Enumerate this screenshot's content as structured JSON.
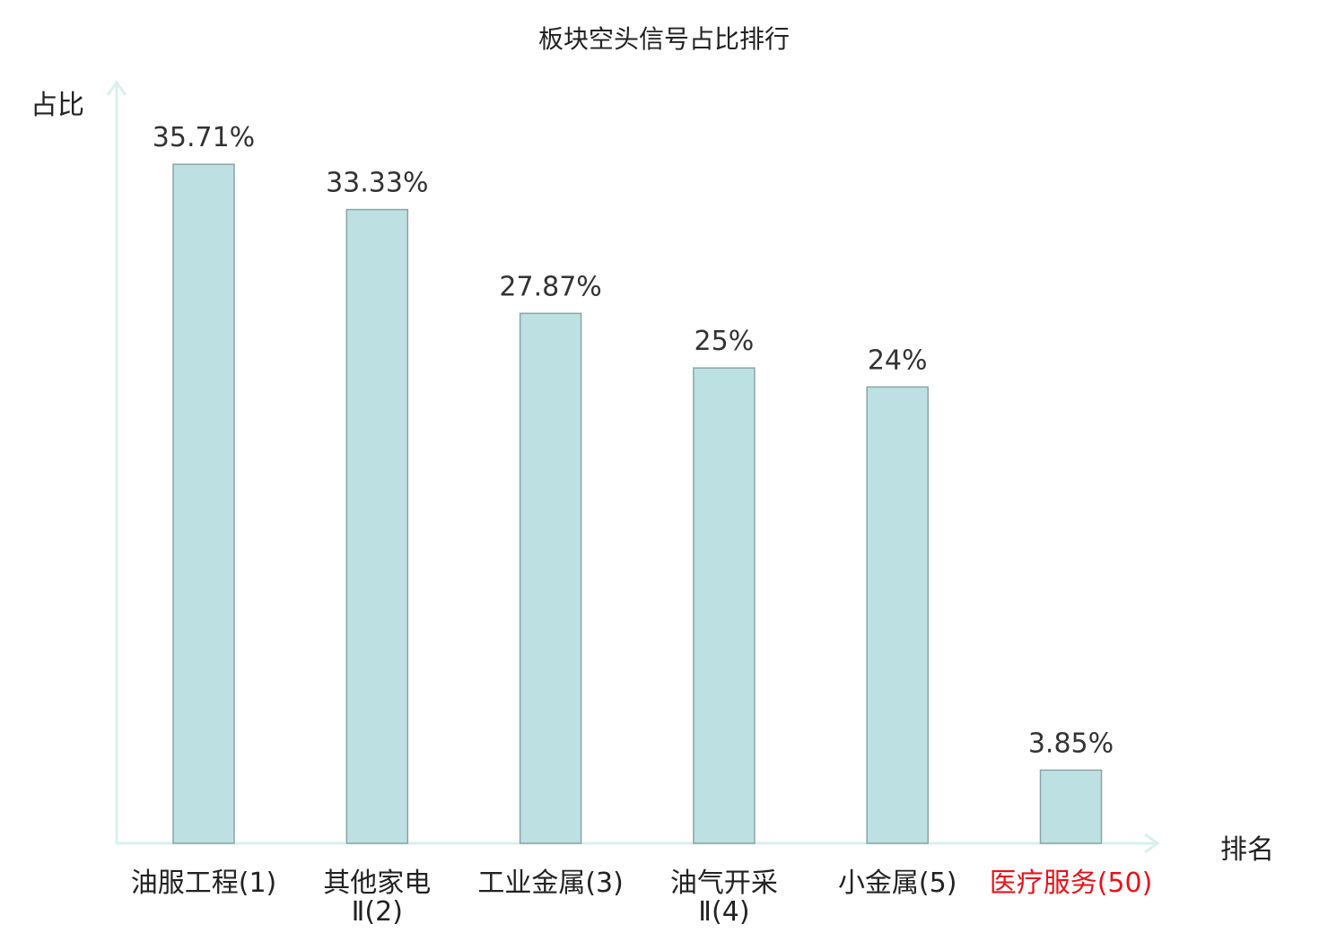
{
  "chart_data": {
    "type": "bar",
    "title": "板块空头信号占比排行",
    "ylabel": "占比",
    "xlabel": "排名",
    "categories": [
      [
        "油服工程(1)"
      ],
      [
        "其他家电",
        "Ⅱ(2)"
      ],
      [
        "工业金属(3)"
      ],
      [
        "油气开采",
        "Ⅱ(4)"
      ],
      [
        "小金属(5)"
      ],
      [
        "医疗服务(50)"
      ]
    ],
    "values": [
      35.71,
      33.33,
      27.87,
      25,
      24,
      3.85
    ],
    "value_labels": [
      "35.71%",
      "33.33%",
      "27.87%",
      "25%",
      "24%",
      "3.85%"
    ],
    "highlight_index": 5,
    "ylim": [
      0,
      37.7
    ],
    "grid": false,
    "colors": {
      "bar_fill": "#bde0e3",
      "bar_stroke": "#8aa4a6",
      "axis": "#d8f0ec",
      "highlight_text": "#e8141b",
      "text": "#222222"
    }
  }
}
